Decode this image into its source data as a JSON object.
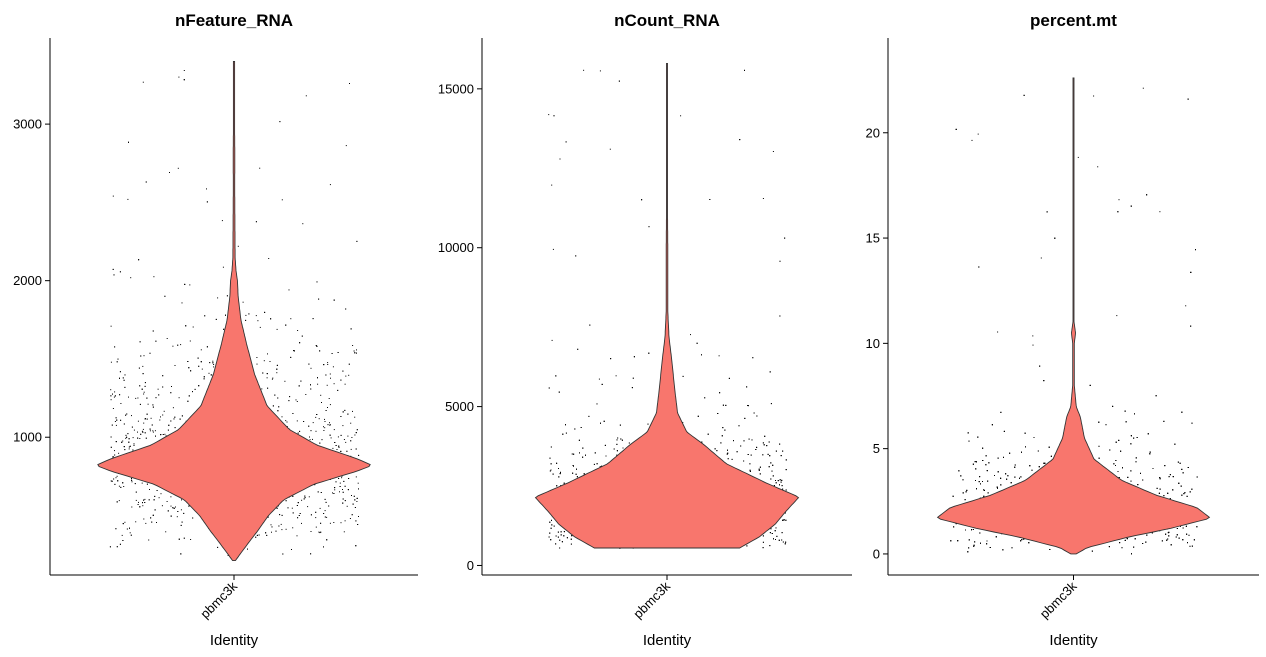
{
  "colors": {
    "violin_fill": "#F8766D",
    "violin_stroke": "#333333",
    "point": "#000000",
    "axis": "#000000"
  },
  "chart_data": [
    {
      "type": "violin",
      "title": "nFeature_RNA",
      "xlabel": "Identity",
      "ylabel": "",
      "categories": [
        "pbmc3k"
      ],
      "ylim": [
        120,
        3550
      ],
      "yticks": [
        1000,
        2000,
        3000
      ],
      "ytick_labels": [
        "1000",
        "2000",
        "3000"
      ],
      "distribution": {
        "min": 212,
        "max": 3400,
        "mode": 820,
        "density": [
          [
            212,
            0.01
          ],
          [
            260,
            0.05
          ],
          [
            320,
            0.1
          ],
          [
            400,
            0.17
          ],
          [
            500,
            0.25
          ],
          [
            600,
            0.36
          ],
          [
            700,
            0.58
          ],
          [
            780,
            0.88
          ],
          [
            820,
            1.0
          ],
          [
            860,
            0.9
          ],
          [
            950,
            0.6
          ],
          [
            1050,
            0.4
          ],
          [
            1200,
            0.24
          ],
          [
            1400,
            0.15
          ],
          [
            1600,
            0.09
          ],
          [
            1750,
            0.05
          ],
          [
            1900,
            0.03
          ],
          [
            2000,
            0.025
          ],
          [
            2060,
            0.015
          ],
          [
            2150,
            0.008
          ],
          [
            2600,
            0.005
          ],
          [
            2800,
            0.006
          ],
          [
            3000,
            0.004
          ],
          [
            3400,
            0.003
          ]
        ]
      },
      "grid": false,
      "legend": "none"
    },
    {
      "type": "violin",
      "title": "nCount_RNA",
      "xlabel": "Identity",
      "ylabel": "",
      "categories": [
        "pbmc3k"
      ],
      "ylim": [
        -300,
        16600
      ],
      "yticks": [
        0,
        5000,
        10000,
        15000
      ],
      "ytick_labels": [
        "0",
        "5000",
        "10000",
        "15000"
      ],
      "distribution": {
        "min": 550,
        "max": 15800,
        "mode": 2150,
        "density": [
          [
            550,
            0.55
          ],
          [
            900,
            0.7
          ],
          [
            1300,
            0.82
          ],
          [
            1700,
            0.9
          ],
          [
            2150,
            1.0
          ],
          [
            2600,
            0.75
          ],
          [
            3200,
            0.45
          ],
          [
            3800,
            0.28
          ],
          [
            4200,
            0.15
          ],
          [
            4800,
            0.08
          ],
          [
            5500,
            0.06
          ],
          [
            6500,
            0.035
          ],
          [
            7200,
            0.015
          ],
          [
            8000,
            0.006
          ],
          [
            10000,
            0.006
          ],
          [
            11000,
            0.004
          ],
          [
            13000,
            0.003
          ],
          [
            15800,
            0.003
          ]
        ]
      },
      "grid": false,
      "legend": "none"
    },
    {
      "type": "violin",
      "title": "percent.mt",
      "xlabel": "Identity",
      "ylabel": "",
      "categories": [
        "pbmc3k"
      ],
      "ylim": [
        -1,
        24.5
      ],
      "yticks": [
        0,
        5,
        10,
        15,
        20
      ],
      "ytick_labels": [
        "0",
        "5",
        "10",
        "15",
        "20"
      ],
      "distribution": {
        "min": 0,
        "max": 22.6,
        "mode": 1.7,
        "density": [
          [
            0,
            0.02
          ],
          [
            0.3,
            0.1
          ],
          [
            0.8,
            0.4
          ],
          [
            1.2,
            0.7
          ],
          [
            1.7,
            1.0
          ],
          [
            2.2,
            0.9
          ],
          [
            2.8,
            0.6
          ],
          [
            3.5,
            0.35
          ],
          [
            4.5,
            0.15
          ],
          [
            5.5,
            0.08
          ],
          [
            6.5,
            0.05
          ],
          [
            7,
            0.02
          ],
          [
            8,
            0.006
          ],
          [
            10,
            0.006
          ],
          [
            10.5,
            0.015
          ],
          [
            11,
            0.004
          ],
          [
            15,
            0.003
          ],
          [
            20,
            0.004
          ],
          [
            22.6,
            0.003
          ]
        ]
      },
      "grid": false,
      "legend": "none"
    }
  ]
}
